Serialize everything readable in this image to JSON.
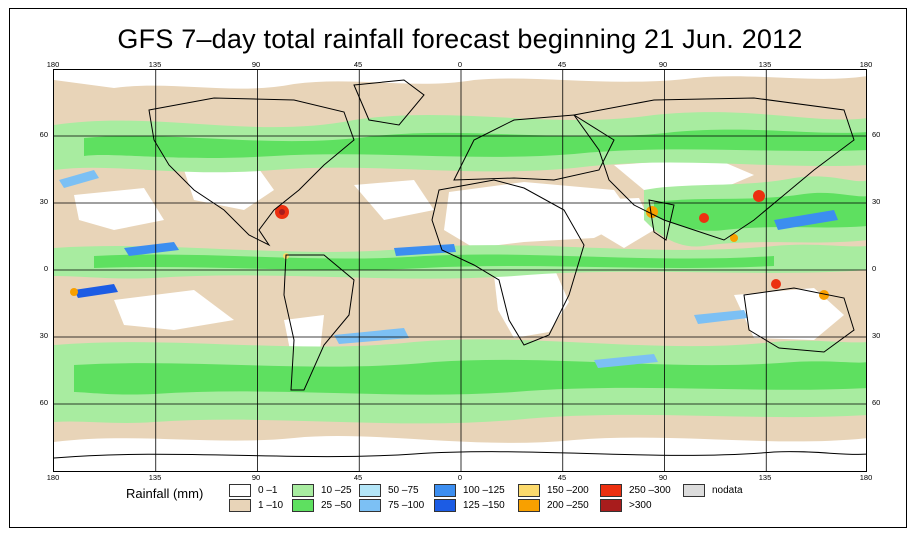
{
  "title": "GFS 7–day total rainfall forecast beginning 21 Jun. 2012",
  "longitude_labels": [
    "180",
    "135",
    "90",
    "45",
    "0",
    "45",
    "90",
    "135",
    "180"
  ],
  "latitude_labels": [
    "60",
    "30",
    "0",
    "30",
    "60"
  ],
  "legend": {
    "title": "Rainfall (mm)",
    "items": [
      {
        "label": "0 –1",
        "color": "#ffffff"
      },
      {
        "label": "1 –10",
        "color": "#e8d4b8"
      },
      {
        "label": "10 –25",
        "color": "#a8eca0"
      },
      {
        "label": "25 –50",
        "color": "#5ee060"
      },
      {
        "label": "50 –75",
        "color": "#b4e6f8"
      },
      {
        "label": "75 –100",
        "color": "#7cc0f4"
      },
      {
        "label": "100 –125",
        "color": "#3c8ef0"
      },
      {
        "label": "125 –150",
        "color": "#1c5ce4"
      },
      {
        "label": "150 –200",
        "color": "#fcda6c"
      },
      {
        "label": "200 –250",
        "color": "#f8a000"
      },
      {
        "label": "250 –300",
        "color": "#ec3010"
      },
      {
        "label": ">300",
        "color": "#a81c1c"
      },
      {
        "label": "nodata",
        "color": "#dcdcdc"
      }
    ]
  }
}
